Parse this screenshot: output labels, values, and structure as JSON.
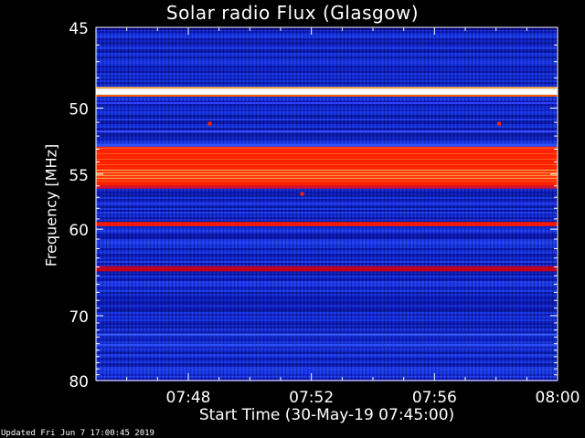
{
  "chart_data": {
    "type": "heatmap",
    "title": "Solar radio Flux (Glasgow)",
    "xlabel": "Start Time (30-May-19 07:45:00)",
    "ylabel": "Frequency [MHz]",
    "x_range_minutes": [
      0,
      15
    ],
    "x_ticks": [
      {
        "value": 3,
        "label": "07:48"
      },
      {
        "value": 7,
        "label": "07:52"
      },
      {
        "value": 11,
        "label": "07:56"
      },
      {
        "value": 15,
        "label": "08:00"
      }
    ],
    "y_range": [
      45,
      80
    ],
    "y_ticks": [
      45,
      50,
      55,
      60,
      70,
      80
    ],
    "colormap": [
      "#00008b",
      "#2030e8",
      "#ff2000",
      "#ffd080",
      "#ffffff"
    ],
    "bands": [
      {
        "freq_start": 48.7,
        "freq_end": 49.1,
        "level": "saturated"
      },
      {
        "freq_start": 52.8,
        "freq_end": 56.0,
        "level": "high"
      },
      {
        "freq_start": 59.3,
        "freq_end": 59.7,
        "level": "high"
      },
      {
        "freq_start": 63.9,
        "freq_end": 64.5,
        "level": "medium"
      }
    ],
    "features": [
      {
        "time_min": 3.7,
        "freq": 51.1,
        "level": "high"
      },
      {
        "time_min": 13.1,
        "freq": 51.1,
        "level": "high"
      },
      {
        "time_min": 6.7,
        "freq": 56.7,
        "level": "high"
      }
    ]
  },
  "footer": {
    "updated": "Updated Fri Jun  7 17:00:45 2019"
  }
}
